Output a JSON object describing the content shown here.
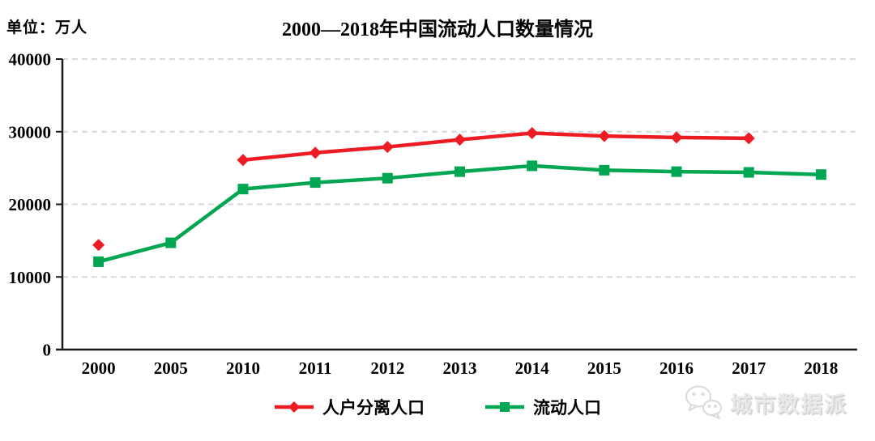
{
  "chart_data": {
    "type": "line",
    "title": "2000—2018年中国流动人口数量情况",
    "unit_label": "单位：万人",
    "categories": [
      "2000",
      "2005",
      "2010",
      "2011",
      "2012",
      "2013",
      "2014",
      "2015",
      "2016",
      "2017",
      "2018"
    ],
    "series": [
      {
        "name": "人户分离人口",
        "color": "#ed1c24",
        "marker": "diamond",
        "values": [
          14400,
          null,
          26100,
          27100,
          27900,
          28900,
          29800,
          29400,
          29200,
          29100,
          null
        ]
      },
      {
        "name": "流动人口",
        "color": "#00a651",
        "marker": "square",
        "values": [
          12100,
          14700,
          22100,
          23000,
          23600,
          24500,
          25300,
          24700,
          24500,
          24400,
          24100
        ]
      }
    ],
    "xlabel": "",
    "ylabel": "",
    "ylim": [
      0,
      40000
    ],
    "yticks": [
      0,
      10000,
      20000,
      30000,
      40000
    ],
    "grid": "horizontal-dashed",
    "legend_position": "bottom"
  },
  "watermark": {
    "label": "城市数据派"
  },
  "styles": {
    "axis_color": "#1a1a1a",
    "grid_color": "#d9d9d9",
    "text_color": "#000000",
    "watermark_color": "#e9e9e9"
  }
}
